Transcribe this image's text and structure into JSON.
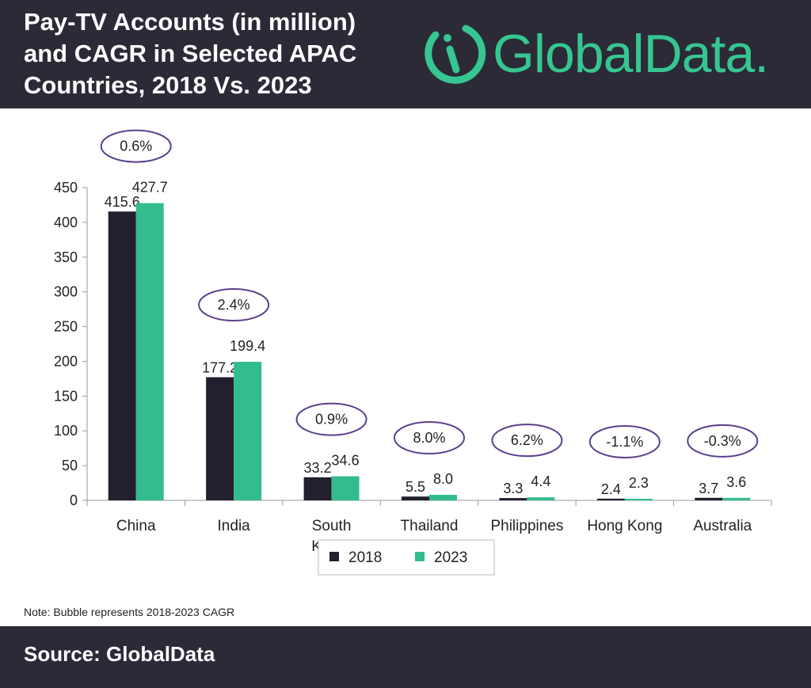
{
  "header": {
    "title_lines": [
      "Pay-TV Accounts (in million)",
      "and CAGR in Selected APAC",
      "Countries, 2018 Vs. 2023"
    ],
    "logo_text": "GlobalData."
  },
  "chart_data": {
    "type": "bar",
    "title": "Pay-TV Accounts (in million) and CAGR in Selected APAC Countries, 2018 Vs. 2023",
    "categories": [
      [
        "China"
      ],
      [
        "India"
      ],
      [
        "South",
        "Korea"
      ],
      [
        "Thailand"
      ],
      [
        "Philippines"
      ],
      [
        "Hong Kong"
      ],
      [
        "Australia"
      ]
    ],
    "series": [
      {
        "name": "2018",
        "color": "#221f2f",
        "values": [
          415.6,
          177.2,
          33.2,
          5.5,
          3.3,
          2.4,
          3.7
        ],
        "labels": [
          "415.6",
          "177.2",
          "33.2",
          "5.5",
          "3.3",
          "2.4",
          "3.7"
        ]
      },
      {
        "name": "2023",
        "color": "#33bc8e",
        "values": [
          427.7,
          199.4,
          34.6,
          8.0,
          4.4,
          2.3,
          3.6
        ],
        "labels": [
          "427.7",
          "199.4",
          "34.6",
          "8.0",
          "4.4",
          "2.3",
          "3.6"
        ]
      }
    ],
    "cagr": [
      "0.6%",
      "2.4%",
      "0.9%",
      "8.0%",
      "6.2%",
      "-1.1%",
      "-0.3%"
    ],
    "ylim": [
      0,
      450
    ],
    "yticks": [
      0,
      50,
      100,
      150,
      200,
      250,
      300,
      350,
      400,
      450
    ],
    "xlabel": "",
    "ylabel": "",
    "legend_position": "bottom-center",
    "bubble_color": "#5b3f8c"
  },
  "note": "Note: Bubble represents 2018-2023 CAGR",
  "footer": {
    "source": "Source: GlobalData"
  }
}
